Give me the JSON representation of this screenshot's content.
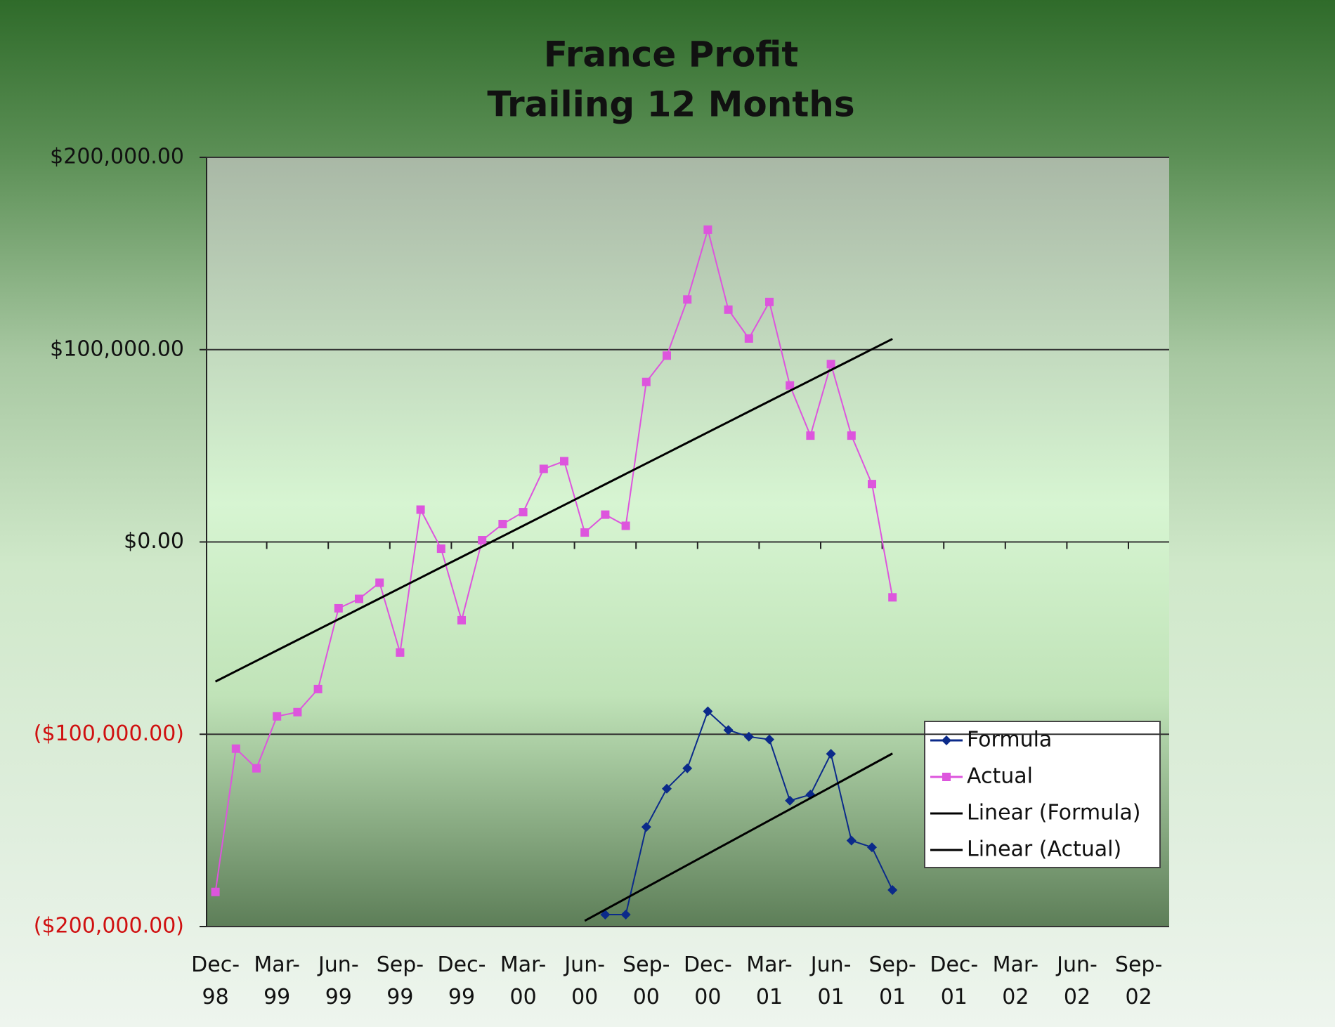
{
  "chart_data": {
    "type": "line",
    "title": "France Profit",
    "subtitle": "Trailing 12 Months",
    "categories": [
      "Dec-98",
      null,
      null,
      "Mar-99",
      null,
      null,
      "Jun-99",
      null,
      null,
      "Sep-99",
      null,
      null,
      "Dec-99",
      null,
      null,
      "Mar-00",
      null,
      null,
      "Jun-00",
      null,
      null,
      "Sep-00",
      null,
      null,
      "Dec-00",
      null,
      null,
      "Mar-01",
      null,
      null,
      "Jun-01",
      null,
      null,
      "Sep-01",
      null,
      null,
      "Dec-01",
      null,
      null,
      "Mar-02",
      null,
      null,
      "Jun-02",
      null,
      null,
      "Sep-02"
    ],
    "series": [
      {
        "name": "Formula",
        "color": "#0b2a8a",
        "marker": "diamond",
        "values": [
          null,
          null,
          null,
          null,
          null,
          null,
          null,
          null,
          null,
          null,
          null,
          null,
          null,
          null,
          null,
          null,
          null,
          null,
          null,
          -193800,
          -193800,
          -148200,
          -128300,
          -117700,
          -88100,
          -97800,
          -101300,
          -102700,
          -134500,
          -131400,
          -110200,
          -155300,
          -158800,
          -181000,
          null,
          null,
          null,
          null,
          null,
          null,
          null,
          null,
          null,
          null,
          null,
          null
        ]
      },
      {
        "name": "Actual",
        "color": "#dd55dd",
        "marker": "square",
        "values": [
          -182000,
          -107500,
          -117700,
          -90700,
          -88500,
          -76500,
          -34500,
          -29600,
          -21200,
          -57500,
          16800,
          -3500,
          -40700,
          900,
          9300,
          15500,
          38000,
          42000,
          4900,
          14200,
          8400,
          83200,
          96900,
          126100,
          162400,
          120800,
          105800,
          124800,
          81400,
          55300,
          92500,
          55300,
          30100,
          -28800,
          null,
          null,
          null,
          null,
          null,
          null,
          null,
          null,
          null,
          null,
          null,
          null
        ]
      },
      {
        "name": "Linear (Formula)",
        "color": "#000000",
        "values": [
          null,
          null,
          null,
          null,
          null,
          null,
          null,
          null,
          null,
          null,
          null,
          null,
          null,
          null,
          null,
          null,
          null,
          null,
          -197000,
          -191200,
          -185400,
          -179600,
          -173800,
          -168000,
          -162200,
          -156400,
          -150600,
          -144800,
          -139000,
          -133200,
          -127400,
          -121600,
          -115800,
          -110000,
          null,
          null,
          null,
          null,
          null,
          null,
          null,
          null,
          null,
          null,
          null,
          null
        ]
      },
      {
        "name": "Linear (Actual)",
        "color": "#000000",
        "values": [
          -72600,
          -67200,
          -61800,
          -56400,
          -51000,
          -45600,
          -40200,
          -34800,
          -29400,
          -24000,
          -18600,
          -13200,
          -7800,
          -2400,
          3000,
          8400,
          13800,
          19200,
          24600,
          30000,
          35400,
          40800,
          46200,
          51600,
          57000,
          62400,
          67800,
          73200,
          78600,
          84000,
          89400,
          94800,
          100200,
          105600,
          null,
          null,
          null,
          null,
          null,
          null,
          null,
          null,
          null,
          null,
          null,
          null
        ]
      }
    ],
    "ylim": [
      -200000,
      200000
    ],
    "yticks": [
      {
        "value": -200000,
        "label": "($200,000.00)"
      },
      {
        "value": -100000,
        "label": "($100,000.00)"
      },
      {
        "value": 0,
        "label": "$0.00"
      },
      {
        "value": 100000,
        "label": "$100,000.00"
      },
      {
        "value": 200000,
        "label": "$200,000.00"
      }
    ],
    "negative_label_color": "#d01010",
    "grid": true,
    "legend": "right"
  }
}
